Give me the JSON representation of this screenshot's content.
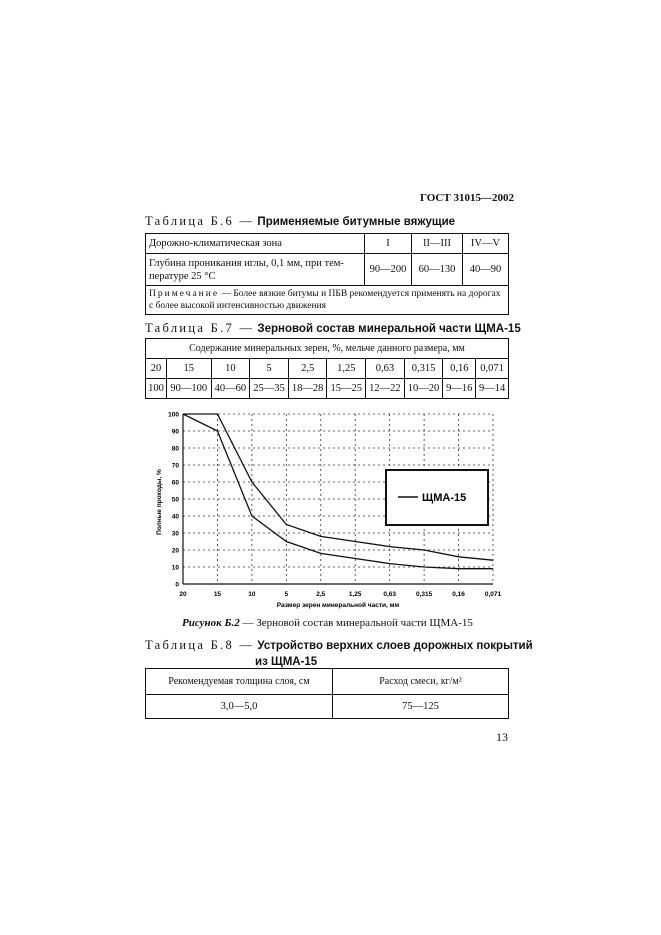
{
  "header": {
    "standard": "ГОСТ 31015—2002"
  },
  "table_b6": {
    "caption_prefix": "Таблица Б.6 —",
    "caption_title": "Применяемые битумные вяжущие",
    "head": [
      "Дорожно-климатическая зона",
      "I",
      "II—III",
      "IV—V"
    ],
    "row_label": "Глубина проникания иглы, 0,1 мм, при тем-пературе 25 °С",
    "row_label_l1": "Глубина проникания иглы, 0,1 мм, при тем-",
    "row_label_l2": "пературе 25 °С",
    "row_values": [
      "90—200",
      "60—130",
      "40—90"
    ],
    "note_label": "Примечание",
    "note_text": " — Более вязкие битумы и ПБВ рекомендуется применять на дорогах с более высокой интенсивностью движения"
  },
  "table_b7": {
    "caption_prefix": "Таблица Б.7 —",
    "caption_title": "Зерновой состав минеральной части ЩМА-15",
    "header": "Содержание минеральных зерен, %, мельче данного размера, мм",
    "sizes": [
      "20",
      "15",
      "10",
      "5",
      "2,5",
      "1,25",
      "0,63",
      "0,315",
      "0,16",
      "0,071"
    ],
    "values": [
      "100",
      "90—100",
      "40—60",
      "25—35",
      "18—28",
      "15—25",
      "12—22",
      "10—20",
      "9—16",
      "9—14"
    ]
  },
  "chart_data": {
    "type": "line",
    "categories": [
      "20",
      "15",
      "10",
      "5",
      "2,5",
      "1,25",
      "0,63",
      "0,315",
      "0,16",
      "0,071"
    ],
    "series": [
      {
        "name": "ЩМА-15",
        "values": [
          100,
          100,
          60,
          35,
          28,
          25,
          22,
          20,
          16,
          14
        ]
      },
      {
        "values": [
          100,
          90,
          40,
          25,
          18,
          15,
          12,
          10,
          9,
          9
        ]
      }
    ],
    "xlabel": "Размер зерен минеральной части, мм",
    "ylabel": "Полные проходы, %",
    "yticks": [
      "0",
      "10",
      "20",
      "30",
      "40",
      "50",
      "60",
      "70",
      "80",
      "90",
      "100"
    ],
    "ylim": [
      0,
      100
    ],
    "grid": true,
    "legend": "right"
  },
  "figure": {
    "label": "Рисунок Б.2",
    "caption": " — Зерновой состав минеральной части ЩМА-15"
  },
  "table_b8": {
    "caption_prefix": "Таблица Б.8 —",
    "caption_title_l1": "Устройство верхних слоев дорожных покрытий",
    "caption_title_l2": "из ЩМА-15",
    "head": [
      "Рекомендуемая толщина слоя, см",
      "Расход смеси, кг/м²"
    ],
    "row": [
      "3,0—5,0",
      "75—125"
    ]
  },
  "page": {
    "number": "13"
  }
}
